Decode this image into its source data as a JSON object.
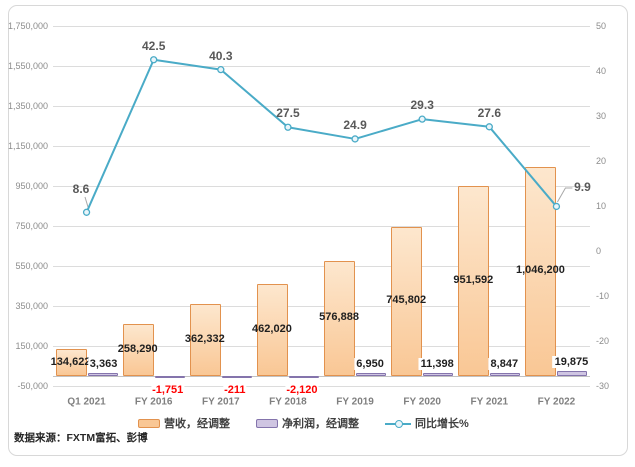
{
  "source_note": "数据来源：FXTM富拓、彭博",
  "colors": {
    "bar_fill_top": "#FDE7CE",
    "bar_fill_bottom": "#F9C795",
    "bar_border": "#E2924E",
    "profit_fill": "#CFC5E2",
    "profit_border": "#8474AC",
    "line": "#4AABC7",
    "marker_fill": "#EAF5FA",
    "negative_label": "#FF0000",
    "data_label": "#1F1F1F",
    "line_label": "#595959",
    "axis_label": "#8C8C8C",
    "category_label": "#7F7F7F",
    "gridline": "#DCDCDC",
    "axis_line": "#C2C2C2",
    "frame_border": "#D8D8D8",
    "leader_line": "#A8A8A8"
  },
  "chart_data": {
    "type": "combo-bar-line",
    "title": "",
    "categories": [
      "Q1 2021",
      "FY 2016",
      "FY 2017",
      "FY 2018",
      "FY 2019",
      "FY 2020",
      "FY 2021",
      "FY 2022"
    ],
    "series": [
      {
        "name": "营收，经调整",
        "type": "bar",
        "axis": "left",
        "values": [
          134622,
          258290,
          362332,
          462020,
          576888,
          745802,
          951592,
          1046200
        ],
        "labels": [
          "134,622",
          "258,290",
          "362,332",
          "462,020",
          "576,888",
          "745,802",
          "951,592",
          "1,046,200"
        ]
      },
      {
        "name": "净利润，经调整",
        "type": "bar",
        "axis": "left",
        "values": [
          3363,
          -1751,
          -211,
          -2120,
          6950,
          11398,
          8847,
          19875
        ],
        "labels": [
          "3,363",
          "-1,751",
          "-211",
          "-2,120",
          "6,950",
          "11,398",
          "8,847",
          "19,875"
        ]
      },
      {
        "name": "同比增长%",
        "type": "line",
        "axis": "right",
        "values": [
          8.6,
          42.5,
          40.3,
          27.5,
          24.9,
          29.3,
          27.6,
          9.9
        ],
        "labels": [
          "8.6",
          "42.5",
          "40.3",
          "27.5",
          "24.9",
          "29.3",
          "27.6",
          "9.9"
        ]
      }
    ],
    "left_axis": {
      "min": -50000,
      "max": 1750000,
      "step": 200000,
      "tick_labels": [
        "1,750,000",
        "1,550,000",
        "1,350,000",
        "1,150,000",
        "950,000",
        "750,000",
        "550,000",
        "350,000",
        "150,000",
        "-50,000"
      ]
    },
    "right_axis": {
      "min": -30,
      "max": 50,
      "step": 10,
      "tick_labels": [
        "50",
        "40",
        "30",
        "20",
        "10",
        "0",
        "-10",
        "-20",
        "-30"
      ]
    },
    "legend_position": "bottom",
    "grid": true
  }
}
